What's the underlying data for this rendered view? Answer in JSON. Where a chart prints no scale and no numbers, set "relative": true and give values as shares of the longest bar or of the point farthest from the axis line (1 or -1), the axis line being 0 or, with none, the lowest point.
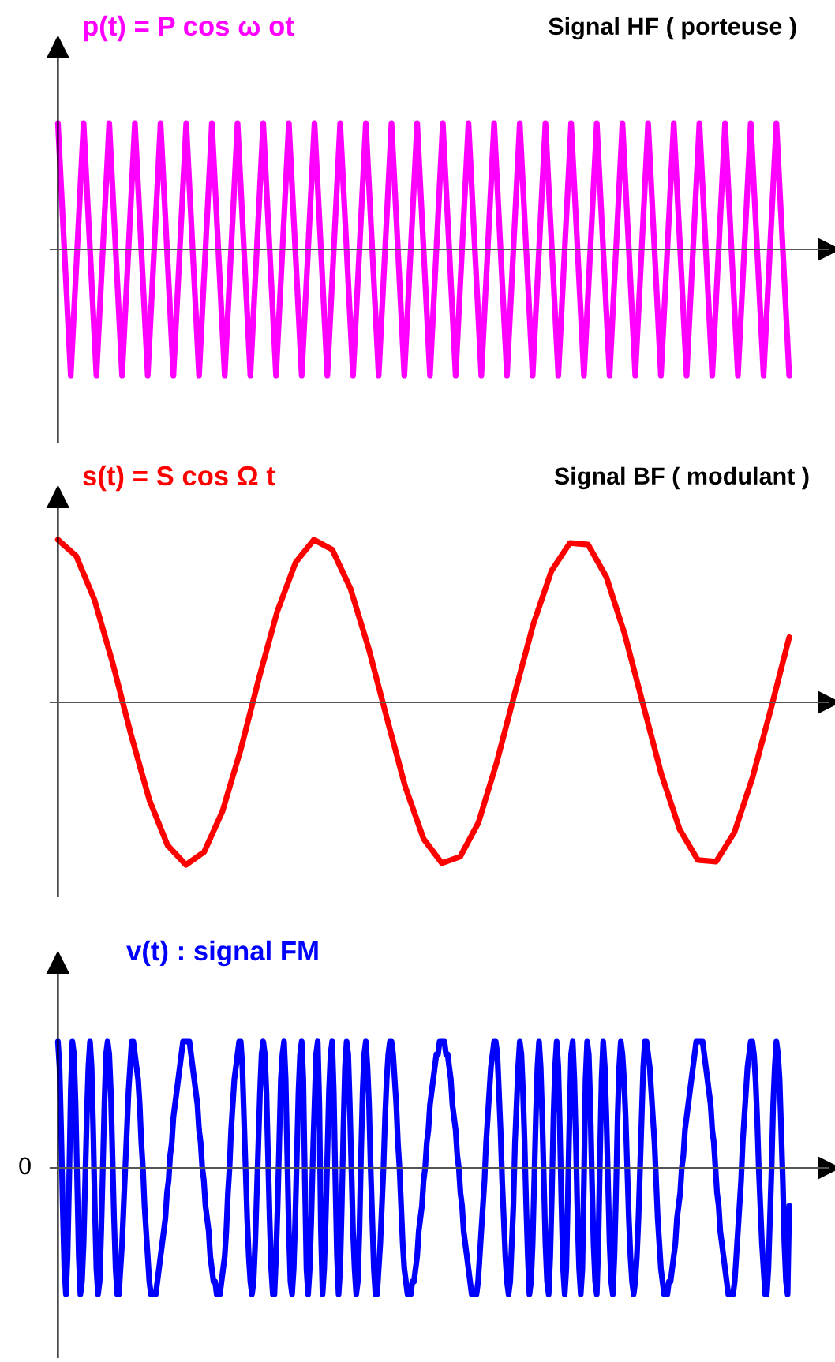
{
  "chart_data": [
    {
      "type": "line",
      "title": "p(t) = P cos ω ot",
      "subtitle": "Signal HF ( porteuse )",
      "relative": true,
      "marker": "none",
      "line_style": "solid",
      "categories": [
        null,
        null,
        null,
        null,
        null,
        null,
        null,
        null,
        null,
        null,
        null,
        null,
        null,
        null,
        null,
        null,
        null,
        null,
        null,
        null,
        null,
        null,
        null,
        null,
        null,
        null,
        null,
        null,
        null,
        null,
        null,
        null,
        null,
        null,
        null,
        null,
        null,
        null,
        null,
        null,
        null,
        null,
        null,
        null,
        null,
        null,
        null,
        null,
        null,
        null,
        null,
        null,
        null,
        null,
        null,
        null,
        null,
        null,
        null,
        null,
        null,
        null,
        null,
        null,
        null,
        null,
        null,
        null,
        null,
        null,
        null,
        null,
        null,
        null,
        null,
        null,
        null,
        null,
        null,
        null,
        null,
        null,
        null,
        null,
        null,
        null,
        null,
        null,
        null,
        null,
        null,
        null,
        null,
        null,
        null,
        null,
        null,
        null,
        null,
        null,
        null,
        null,
        null,
        null,
        null,
        null,
        null,
        null,
        null,
        null,
        null,
        null,
        null,
        null,
        null
      ],
      "series": [
        {
          "color": "#ff00ff",
          "values": [
            1,
            0,
            -1,
            0,
            1,
            0,
            -1,
            0,
            1,
            0,
            -1,
            0,
            1,
            0,
            -1,
            0,
            1,
            0,
            -1,
            0,
            1,
            0,
            -1,
            0,
            1,
            0,
            -1,
            0,
            1,
            0,
            -1,
            0,
            1,
            0,
            -1,
            0,
            1,
            0,
            -1,
            0,
            1,
            0,
            -1,
            0,
            1,
            0,
            -1,
            0,
            1,
            0,
            -1,
            0,
            1,
            0,
            -1,
            0,
            1,
            0,
            -1,
            0,
            1,
            0,
            -1,
            0,
            1,
            0,
            -1,
            0,
            1,
            0,
            -1,
            0,
            1,
            0,
            -1,
            0,
            1,
            0,
            -1,
            0,
            1,
            0,
            -1,
            0,
            1,
            0,
            -1,
            0,
            1,
            0,
            -1,
            0,
            1,
            0,
            -1,
            0,
            1,
            0,
            -1,
            0,
            1,
            0,
            -1,
            0,
            1,
            0,
            -1,
            0,
            1,
            0,
            -1,
            0,
            1,
            0,
            -1
          ]
        }
      ]
    },
    {
      "type": "line",
      "title": "s(t) = S cos Ω t",
      "subtitle": "Signal BF ( modulant )",
      "relative": true,
      "marker": "none",
      "line_style": "solid",
      "categories": [
        null,
        null,
        null,
        null,
        null,
        null,
        null,
        null,
        null,
        null,
        null,
        null,
        null,
        null,
        null,
        null,
        null,
        null,
        null,
        null,
        null,
        null,
        null,
        null,
        null,
        null,
        null,
        null,
        null,
        null,
        null,
        null,
        null,
        null,
        null,
        null,
        null,
        null,
        null,
        null,
        null
      ],
      "series": [
        {
          "color": "#ff0000",
          "values": [
            1.0,
            0.9,
            0.63,
            0.24,
            -0.2,
            -0.6,
            -0.88,
            -1.0,
            -0.92,
            -0.67,
            -0.29,
            0.15,
            0.56,
            0.86,
            1.0,
            0.94,
            0.7,
            0.33,
            -0.1,
            -0.52,
            -0.84,
            -0.99,
            -0.95,
            -0.74,
            -0.37,
            0.06,
            0.48,
            0.81,
            0.98,
            0.97,
            0.77,
            0.42,
            -0.01,
            -0.44,
            -0.78,
            -0.97,
            -0.98,
            -0.8,
            -0.46,
            -0.04,
            0.4
          ]
        }
      ]
    },
    {
      "type": "line",
      "title": "v(t) : signal FM",
      "annotations": [
        "0"
      ],
      "relative": true,
      "marker": "none",
      "line_style": "solid",
      "categories": [
        null,
        null,
        null,
        null,
        null,
        null,
        null,
        null,
        null,
        null,
        null,
        null,
        null,
        null,
        null,
        null,
        null,
        null,
        null,
        null,
        null,
        null,
        null,
        null,
        null,
        null,
        null,
        null,
        null,
        null,
        null,
        null,
        null,
        null,
        null,
        null,
        null,
        null,
        null,
        null,
        null,
        null,
        null,
        null,
        null,
        null,
        null,
        null,
        null,
        null,
        null,
        null,
        null,
        null,
        null,
        null,
        null,
        null,
        null,
        null,
        null,
        null,
        null,
        null,
        null,
        null,
        null,
        null,
        null,
        null,
        null,
        null,
        null,
        null,
        null,
        null,
        null,
        null,
        null,
        null,
        null,
        null,
        null,
        null,
        null,
        null,
        null,
        null,
        null,
        null,
        null,
        null,
        null,
        null,
        null,
        null,
        null,
        null,
        null,
        null,
        null,
        null,
        null,
        null,
        null,
        null,
        null,
        null,
        null,
        null,
        null,
        null,
        null,
        null,
        null,
        null,
        null,
        null,
        null,
        null,
        null,
        null,
        null,
        null,
        null,
        null,
        null,
        null,
        null,
        null,
        null,
        null,
        null,
        null,
        null,
        null,
        null,
        null,
        null,
        null,
        null,
        null,
        null,
        null,
        null,
        null,
        null,
        null,
        null,
        null,
        null,
        null,
        null,
        null,
        null,
        null,
        null,
        null,
        null,
        null,
        null,
        null,
        null,
        null,
        null,
        null,
        null,
        null,
        null,
        null,
        null,
        null,
        null,
        null,
        null,
        null,
        null,
        null,
        null,
        null,
        null,
        null,
        null,
        null,
        null,
        null,
        null,
        null,
        null,
        null,
        null,
        null,
        null,
        null,
        null,
        null,
        null,
        null,
        null,
        null,
        null,
        null,
        null,
        null,
        null,
        null,
        null,
        null,
        null,
        null,
        null,
        null,
        null,
        null,
        null,
        null,
        null,
        null,
        null,
        null,
        null,
        null,
        null,
        null,
        null,
        null,
        null,
        null,
        null,
        null,
        null,
        null,
        null,
        null,
        null,
        null,
        null,
        null,
        null,
        null,
        null,
        null,
        null,
        null,
        null,
        null,
        null,
        null,
        null,
        null,
        null,
        null,
        null,
        null,
        null,
        null,
        null,
        null,
        null,
        null,
        null,
        null,
        null,
        null,
        null,
        null,
        null,
        null,
        null,
        null,
        null,
        null,
        null,
        null,
        null,
        null,
        null,
        null,
        null,
        null,
        null,
        null,
        null,
        null,
        null,
        null,
        null,
        null,
        null,
        null,
        null,
        null,
        null,
        null,
        null,
        null,
        null,
        null,
        null,
        null,
        null,
        null,
        null,
        null,
        null,
        null,
        null,
        null,
        null,
        null,
        null,
        null,
        null,
        null,
        null,
        null,
        null,
        null,
        null,
        null,
        null,
        null,
        null,
        null,
        null,
        null,
        null,
        null,
        null,
        null,
        null,
        null,
        null,
        null,
        null,
        null,
        null,
        null,
        null,
        null,
        null,
        null,
        null,
        null,
        null,
        null,
        null,
        null,
        null,
        null,
        null,
        null,
        null,
        null,
        null,
        null,
        null,
        null,
        null,
        null,
        null,
        null,
        null,
        null,
        null,
        null,
        null,
        null,
        null,
        null,
        null,
        null,
        null,
        null,
        null,
        null,
        null,
        null,
        null,
        null,
        null,
        null,
        null,
        null,
        null,
        null,
        null,
        null,
        null,
        null,
        null,
        null,
        null,
        null,
        null,
        null,
        null,
        null,
        null,
        null,
        null,
        null,
        null,
        null,
        null,
        null,
        null,
        null,
        null,
        null,
        null,
        null,
        null,
        null,
        null,
        null,
        null,
        null,
        null,
        null,
        null,
        null,
        null,
        null,
        null,
        null,
        null,
        null,
        null,
        null,
        null,
        null,
        null,
        null,
        null,
        null,
        null,
        null,
        null,
        null,
        null,
        null,
        null,
        null,
        null,
        null,
        null,
        null,
        null,
        null,
        null,
        null,
        null,
        null,
        null,
        null,
        null
      ],
      "series": [
        {
          "color": "#0000ff",
          "values": [
            1,
            0.8,
            0.3,
            -0.3,
            -0.8,
            -1,
            -0.7,
            -0.1,
            0.6,
            1,
            0.9,
            0.5,
            -0.1,
            -0.7,
            -1,
            -0.9,
            -0.6,
            -0.1,
            0.4,
            0.8,
            1,
            0.8,
            0.3,
            -0.3,
            -0.8,
            -1,
            -0.9,
            -0.5,
            0,
            0.5,
            0.9,
            1,
            0.9,
            0.6,
            0.1,
            -0.4,
            -0.8,
            -1,
            -1,
            -0.8,
            -0.6,
            -0.3,
            0,
            0.3,
            0.6,
            0.8,
            1,
            1,
            0.9,
            0.8,
            0.7,
            0.5,
            0.2,
            0,
            -0.3,
            -0.5,
            -0.7,
            -0.9,
            -1,
            -1,
            -1,
            -1,
            -0.9,
            -0.8,
            -0.7,
            -0.6,
            -0.5,
            -0.4,
            -0.2,
            -0.1,
            0.1,
            0.2,
            0.4,
            0.5,
            0.6,
            0.7,
            0.8,
            0.9,
            1,
            1,
            1,
            1,
            1,
            0.9,
            0.8,
            0.7,
            0.6,
            0.5,
            0.3,
            0.2,
            0,
            -0.1,
            -0.3,
            -0.4,
            -0.5,
            -0.7,
            -0.8,
            -0.9,
            -0.9,
            -1,
            -1,
            -1,
            -0.9,
            -0.8,
            -0.7,
            -0.5,
            -0.2,
            0,
            0.3,
            0.5,
            0.7,
            0.8,
            0.9,
            1,
            1,
            0.8,
            0.4,
            0,
            -0.4,
            -0.7,
            -0.9,
            -1,
            -0.9,
            -0.6,
            -0.2,
            0.2,
            0.6,
            0.9,
            1,
            0.9,
            0.6,
            0.1,
            -0.4,
            -0.8,
            -1,
            -1,
            -0.7,
            -0.3,
            0.2,
            0.7,
            0.9,
            1,
            0.7,
            0.1,
            -0.5,
            -0.9,
            -1,
            -0.8,
            -0.4,
            0.1,
            0.6,
            0.9,
            1,
            0.7,
            -0.1,
            -0.8,
            -1,
            -0.8,
            -0.4,
            0.1,
            0.5,
            0.9,
            1,
            0.5,
            -0.5,
            -1,
            -0.8,
            -0.4,
            0.1,
            0.6,
            0.9,
            1,
            0.6,
            -0.1,
            -0.7,
            -1,
            -0.8,
            -0.3,
            0.3,
            0.8,
            1,
            0.9,
            0.5,
            0,
            -0.5,
            -0.8,
            -1,
            -0.9,
            -0.5,
            0.1,
            0.6,
            0.9,
            1,
            0.8,
            0.5,
            0,
            -0.4,
            -0.8,
            -1,
            -1,
            -0.8,
            -0.6,
            -0.3,
            0,
            0.4,
            0.7,
            0.9,
            1,
            1,
            0.9,
            0.7,
            0.5,
            0.2,
            0,
            -0.3,
            -0.6,
            -0.8,
            -0.9,
            -1,
            -1,
            -1,
            -0.9,
            -0.9,
            -0.8,
            -0.7,
            -0.5,
            -0.4,
            -0.3,
            -0.1,
            0,
            0.2,
            0.3,
            0.5,
            0.6,
            0.7,
            0.8,
            0.9,
            0.9,
            1,
            1,
            1,
            1,
            0.9,
            0.9,
            0.8,
            0.7,
            0.5,
            0.4,
            0.3,
            0.1,
            0,
            -0.2,
            -0.3,
            -0.5,
            -0.6,
            -0.7,
            -0.8,
            -0.9,
            -1,
            -1,
            -1,
            -1,
            -0.9,
            -0.7,
            -0.5,
            -0.3,
            -0.1,
            0.2,
            0.4,
            0.6,
            0.8,
            0.9,
            1,
            1,
            0.9,
            0.6,
            0.3,
            -0.1,
            -0.4,
            -0.7,
            -0.9,
            -1,
            -0.9,
            -0.6,
            -0.3,
            0.2,
            0.5,
            0.8,
            1,
            0.9,
            0.6,
            0.2,
            -0.3,
            -0.7,
            -1,
            -0.9,
            -0.6,
            -0.1,
            0.4,
            0.8,
            1,
            0.8,
            0.4,
            -0.1,
            -0.6,
            -0.9,
            -1,
            -0.7,
            -0.2,
            0.4,
            0.8,
            1,
            0.8,
            0.3,
            -0.3,
            -0.8,
            -1,
            -0.8,
            -0.2,
            0.4,
            0.9,
            1,
            0.7,
            0.2,
            -0.4,
            -0.8,
            -1,
            -0.8,
            -0.1,
            0.7,
            1,
            0.9,
            0.5,
            -0.1,
            -0.6,
            -0.9,
            -1,
            -0.6,
            0.1,
            0.7,
            1,
            0.8,
            0.4,
            -0.1,
            -0.6,
            -0.9,
            -1,
            -0.7,
            -0.2,
            0.4,
            0.8,
            1,
            0.9,
            0.7,
            0.4,
            0,
            -0.4,
            -0.7,
            -0.9,
            -1,
            -0.9,
            -0.7,
            -0.4,
            0,
            0.4,
            0.8,
            1,
            1,
            0.9,
            0.8,
            0.6,
            0.4,
            0.2,
            -0.1,
            -0.4,
            -0.6,
            -0.8,
            -0.9,
            -1,
            -1,
            -1,
            -0.9,
            -0.9,
            -0.8,
            -0.7,
            -0.6,
            -0.4,
            -0.3,
            -0.2,
            0,
            0.1,
            0.3,
            0.4,
            0.5,
            0.6,
            0.7,
            0.8,
            0.9,
            1,
            1,
            1,
            1,
            1,
            0.9,
            0.8,
            0.7,
            0.6,
            0.5,
            0.3,
            0.2,
            0,
            -0.2,
            -0.3,
            -0.5,
            -0.6,
            -0.7,
            -0.8,
            -0.9,
            -1,
            -1,
            -1,
            -1,
            -0.9,
            -0.7,
            -0.5,
            -0.3,
            -0.1,
            0.2,
            0.4,
            0.6,
            0.8,
            0.9,
            1,
            1,
            0.9,
            0.7,
            0.4,
            0,
            -0.3,
            -0.6,
            -0.8,
            -1,
            -1,
            -0.8,
            -0.4,
            0,
            0.5,
            0.8,
            1,
            0.9,
            0.7,
            0.3,
            -0.1,
            -0.6,
            -0.9,
            -1,
            -0.3
          ]
        }
      ]
    }
  ]
}
